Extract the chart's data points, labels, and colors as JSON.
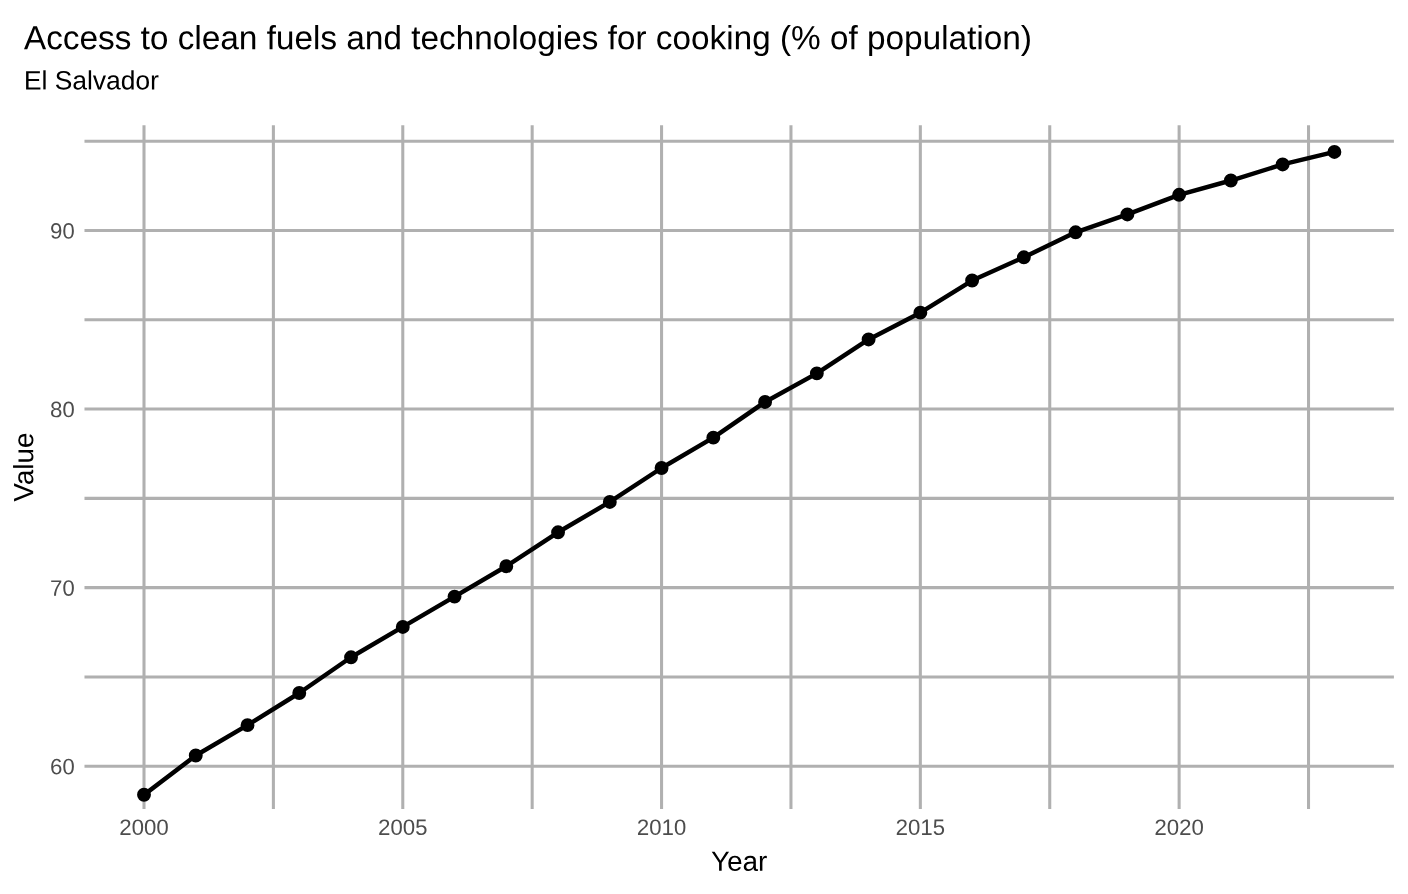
{
  "chart_data": {
    "type": "line",
    "title": "Access to clean fuels and technologies for cooking (% of population)",
    "subtitle": "El Salvador",
    "xlabel": "Year",
    "ylabel": "Value",
    "x": [
      2000,
      2001,
      2002,
      2003,
      2004,
      2005,
      2006,
      2007,
      2008,
      2009,
      2010,
      2011,
      2012,
      2013,
      2014,
      2015,
      2016,
      2017,
      2018,
      2019,
      2020,
      2021,
      2022,
      2023
    ],
    "series": [
      {
        "color": "#000000",
        "values": [
          58.4,
          60.6,
          62.3,
          64.1,
          66.1,
          67.8,
          69.5,
          71.2,
          73.1,
          74.8,
          76.7,
          78.4,
          80.4,
          82.0,
          83.9,
          85.4,
          87.2,
          88.5,
          89.9,
          90.9,
          92.0,
          92.8,
          93.7,
          94.4
        ]
      }
    ],
    "xlim": [
      1998.85,
      2024.15
    ],
    "ylim": [
      57.6,
      95.9
    ],
    "xticks": [
      2000,
      {
        "value": 2002.5,
        "label": null
      },
      2005,
      {
        "value": 2007.5,
        "label": null
      },
      2010,
      {
        "value": 2012.5,
        "label": null
      },
      2015,
      {
        "value": 2017.5,
        "label": null
      },
      2020,
      {
        "value": 2022.5,
        "label": null
      }
    ],
    "yticks": [
      60,
      {
        "value": 65,
        "label": null
      },
      70,
      {
        "value": 75,
        "label": null
      },
      80,
      {
        "value": 85,
        "label": null
      },
      90,
      {
        "value": 95,
        "label": null
      }
    ],
    "grid": true,
    "marker": "circle",
    "line_style": "solid",
    "legend": false
  }
}
